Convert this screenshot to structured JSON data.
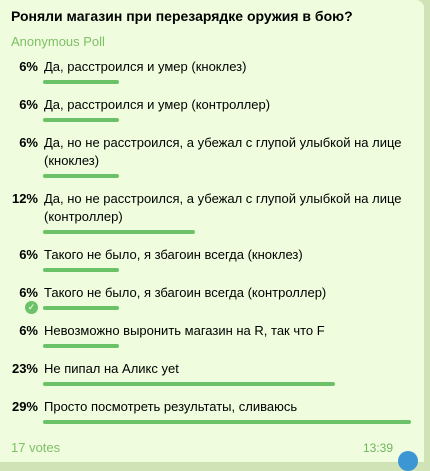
{
  "poll": {
    "question": "Роняли магазин при перезарядке оружия в бою?",
    "type_label": "Anonymous Poll",
    "options": [
      {
        "percent": "6%",
        "value": 6,
        "text": "Да, расстроился и умер (кноклез)",
        "chosen": false
      },
      {
        "percent": "6%",
        "value": 6,
        "text": "Да, расстроился и умер (контроллер)",
        "chosen": false
      },
      {
        "percent": "6%",
        "value": 6,
        "text": "Да, но не расстроился, а убежал с глупой улыбкой на лице (кноклез)",
        "chosen": false
      },
      {
        "percent": "12%",
        "value": 12,
        "text": "Да, но не расстроился, а убежал с глупой улыбкой на лице (контроллер)",
        "chosen": false
      },
      {
        "percent": "6%",
        "value": 6,
        "text": "Такого не было, я збагоин всегда (кноклез)",
        "chosen": false
      },
      {
        "percent": "6%",
        "value": 6,
        "text": "Такого не было, я збагоин всегда (контроллер)",
        "chosen": true
      },
      {
        "percent": "6%",
        "value": 6,
        "text": "Невозможно выронить магазин на R, так что F",
        "chosen": false
      },
      {
        "percent": "23%",
        "value": 23,
        "text": "Не пипал на Аликс yet",
        "chosen": false
      },
      {
        "percent": "29%",
        "value": 29,
        "text": "Просто посмотреть результаты, сливаюсь",
        "chosen": false
      }
    ],
    "votes_label": "17 votes",
    "time": "13:39"
  },
  "colors": {
    "bubble": "#effdde",
    "background": "#cfe3b6",
    "bar": "#6cc268",
    "muted_green": "#7fbf66",
    "corner_icon": "#3d96d4"
  },
  "icons": {
    "check": "check-icon",
    "corner": "circle-icon"
  }
}
